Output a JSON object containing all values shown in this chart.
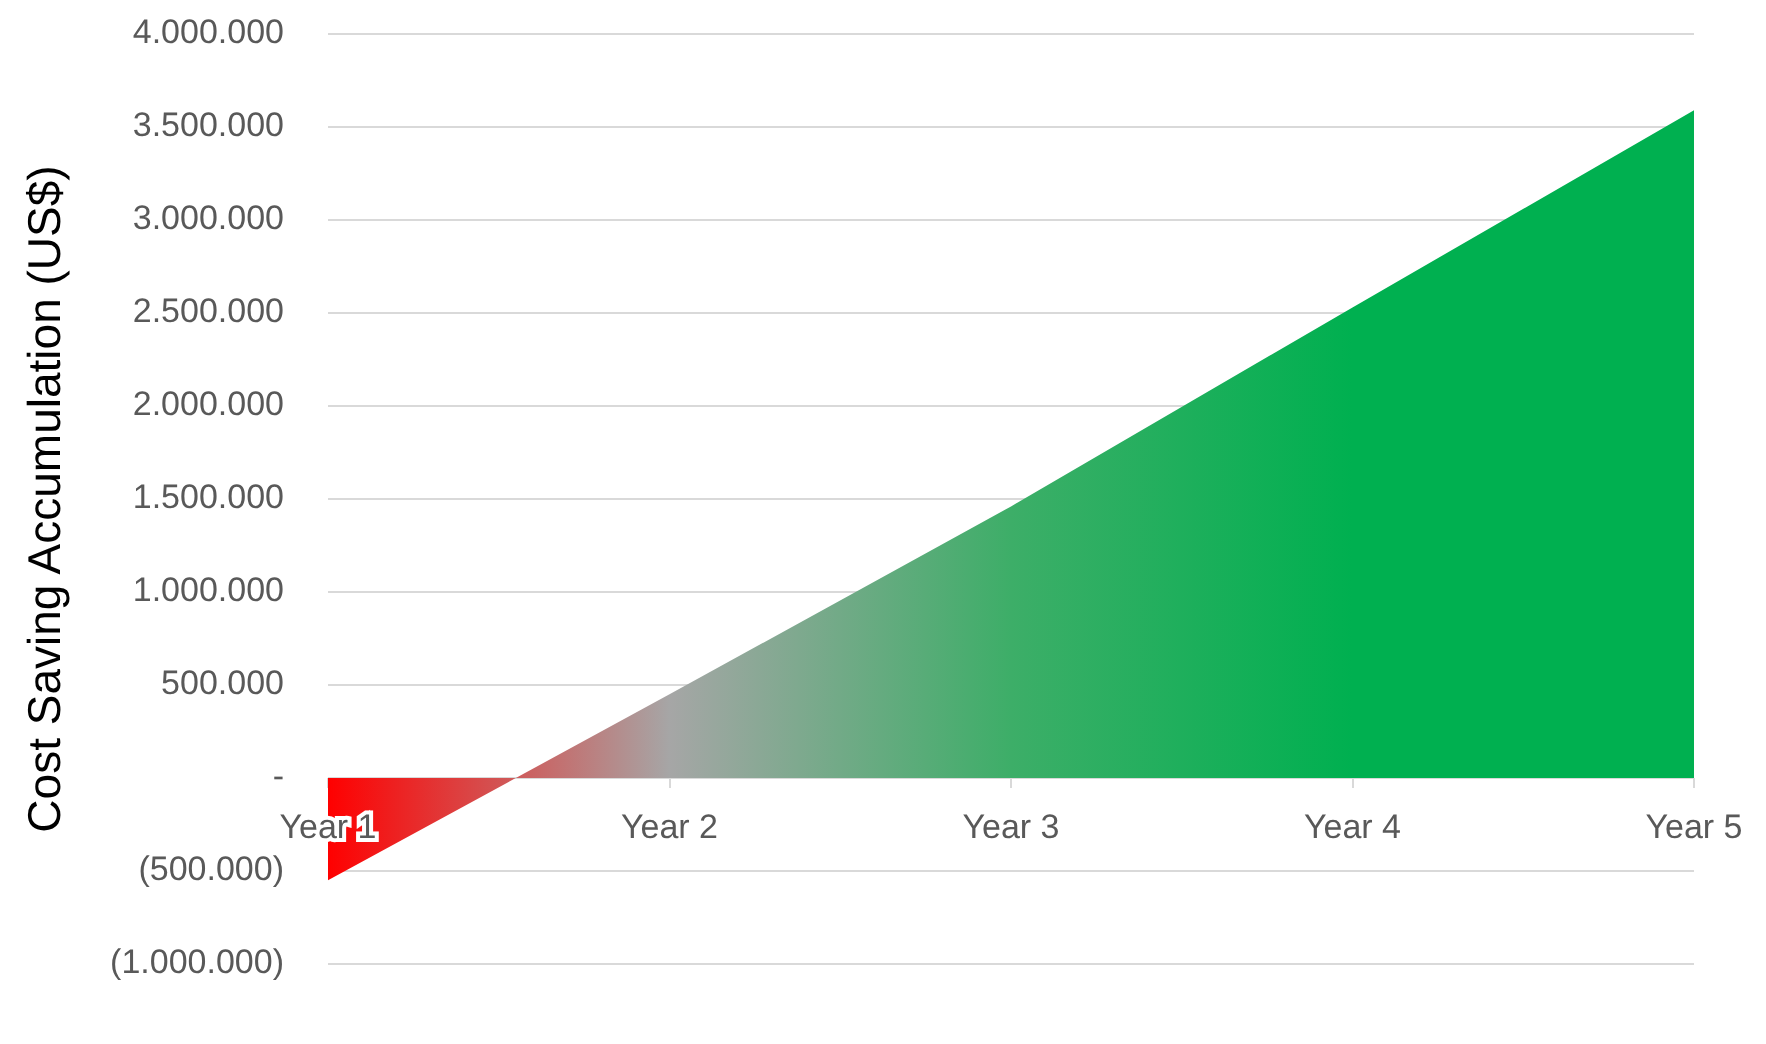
{
  "chart_data": {
    "type": "area",
    "ylabel": "Cost Saving Accumulation (US$)",
    "categories": [
      "Year 1",
      "Year 2",
      "Year 3",
      "Year 4",
      "Year 5"
    ],
    "values": [
      -550000,
      450000,
      1460000,
      2530000,
      3590000
    ],
    "colors": [
      "#ff0000",
      "#a6a6a6",
      "#3dae68",
      "#00b050",
      "#00b050"
    ],
    "ylim": [
      -1000000,
      4000000
    ],
    "yticks": [
      {
        "value": -1000000,
        "label": "(1.000.000)"
      },
      {
        "value": -500000,
        "label": "(500.000)"
      },
      {
        "value": 0,
        "label": "-"
      },
      {
        "value": 500000,
        "label": "500.000"
      },
      {
        "value": 1000000,
        "label": "1.000.000"
      },
      {
        "value": 1500000,
        "label": "1.500.000"
      },
      {
        "value": 2000000,
        "label": "2.000.000"
      },
      {
        "value": 2500000,
        "label": "2.500.000"
      },
      {
        "value": 3000000,
        "label": "3.000.000"
      },
      {
        "value": 3500000,
        "label": "3.500.000"
      },
      {
        "value": 4000000,
        "label": "4.000.000"
      }
    ],
    "grid": "y",
    "marker": "none"
  }
}
